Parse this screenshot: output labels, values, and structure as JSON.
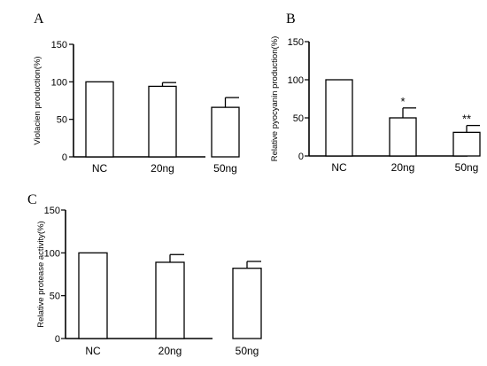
{
  "chart_data": [
    {
      "type": "bar",
      "panel_label": "A",
      "title": "",
      "xlabel": "",
      "ylabel": "Violacien production(%)",
      "ylim": [
        0,
        150
      ],
      "yticks": [
        "0",
        "50",
        "100",
        "150"
      ],
      "categories": [
        "NC",
        "20ng",
        "50ng"
      ],
      "series": [
        {
          "values": [
            100,
            94,
            66
          ],
          "errors": [
            0,
            5,
            13
          ]
        }
      ],
      "significance": [
        "",
        "",
        ""
      ],
      "grid": false
    },
    {
      "type": "bar",
      "panel_label": "B",
      "title": "",
      "xlabel": "",
      "ylabel": "Relative pyocyanin production(%)",
      "ylim": [
        0,
        150
      ],
      "yticks": [
        "0",
        "50",
        "100",
        "150"
      ],
      "categories": [
        "NC",
        "20ng",
        "50ng"
      ],
      "series": [
        {
          "values": [
            100,
            50,
            31
          ],
          "errors": [
            0,
            13,
            9
          ]
        }
      ],
      "significance": [
        "",
        "*",
        "**"
      ],
      "grid": false
    },
    {
      "type": "bar",
      "panel_label": "C",
      "title": "",
      "xlabel": "",
      "ylabel": "Relative protease activity(%)",
      "ylim": [
        0,
        150
      ],
      "yticks": [
        "0",
        "50",
        "100",
        "150"
      ],
      "categories": [
        "NC",
        "20ng",
        "50ng"
      ],
      "series": [
        {
          "values": [
            100,
            89,
            82
          ],
          "errors": [
            0,
            9,
            8
          ]
        }
      ],
      "significance": [
        "",
        "",
        ""
      ],
      "grid": false
    }
  ]
}
